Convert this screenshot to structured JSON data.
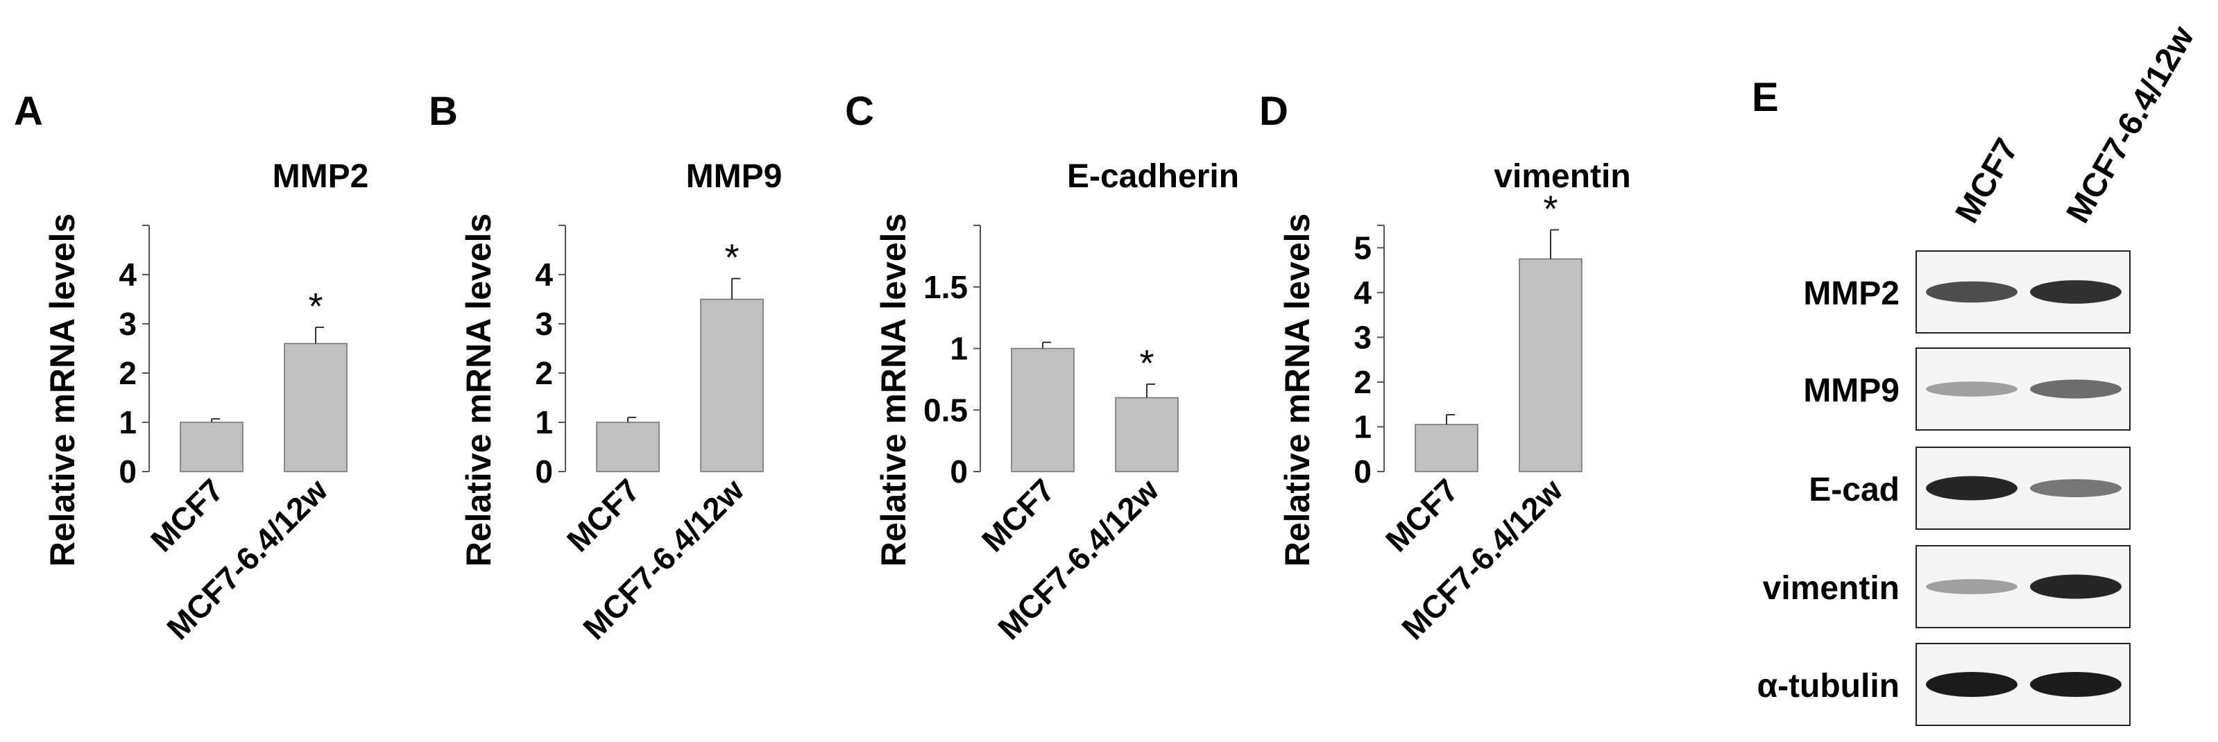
{
  "chart_data": [
    {
      "type": "bar",
      "panel": "A",
      "title": "MMP2",
      "ylabel": "Relative mRNA  levels",
      "categories": [
        "MCF7",
        "MCF7-6.4/12w"
      ],
      "values": [
        1.0,
        2.6
      ],
      "errors": [
        0.07,
        0.33
      ],
      "significance": [
        "",
        "*"
      ],
      "yticks": [
        0,
        1,
        2,
        3,
        4
      ],
      "ylim": [
        0,
        5
      ]
    },
    {
      "type": "bar",
      "panel": "B",
      "title": "MMP9",
      "ylabel": "Relative mRNA  levels",
      "categories": [
        "MCF7",
        "MCF7-6.4/12w"
      ],
      "values": [
        1.0,
        3.5
      ],
      "errors": [
        0.1,
        0.42
      ],
      "significance": [
        "",
        "*"
      ],
      "yticks": [
        0,
        1,
        2,
        3,
        4
      ],
      "ylim": [
        0,
        5
      ]
    },
    {
      "type": "bar",
      "panel": "C",
      "title": "E-cadherin",
      "ylabel": "Relative mRNA  levels",
      "categories": [
        "MCF7",
        "MCF7-6.4/12w"
      ],
      "values": [
        1.0,
        0.6
      ],
      "errors": [
        0.05,
        0.11
      ],
      "significance": [
        "",
        "*"
      ],
      "yticks": [
        0,
        0.5,
        1,
        1.5
      ],
      "ytick_labels": [
        "0",
        "0.5",
        "1",
        "1.5"
      ],
      "ylim": [
        0,
        2
      ]
    },
    {
      "type": "bar",
      "panel": "D",
      "title": "vimentin",
      "ylabel": "Relative mRNA  levels",
      "categories": [
        "MCF7",
        "MCF7-6.4/12w"
      ],
      "values": [
        1.05,
        4.75
      ],
      "errors": [
        0.22,
        0.65
      ],
      "significance": [
        "",
        "*"
      ],
      "yticks": [
        0,
        1,
        2,
        3,
        4,
        5
      ],
      "ylim": [
        0,
        5.5
      ]
    }
  ],
  "western_blot": {
    "panel": "E",
    "columns": [
      "MCF7",
      "MCF7-6.4/12w"
    ],
    "rows": [
      "MMP2",
      "MMP9",
      "E-cad",
      "vimentin",
      "α-tubulin"
    ],
    "band_intensity": [
      [
        0.75,
        0.9
      ],
      [
        0.35,
        0.6
      ],
      [
        0.95,
        0.55
      ],
      [
        0.35,
        0.95
      ],
      [
        1.0,
        1.0
      ]
    ]
  },
  "colors": {
    "bar_fill": "#c0c0c0",
    "bar_stroke": "#6e6e6e",
    "axis": "#555555",
    "text": "#000000"
  }
}
